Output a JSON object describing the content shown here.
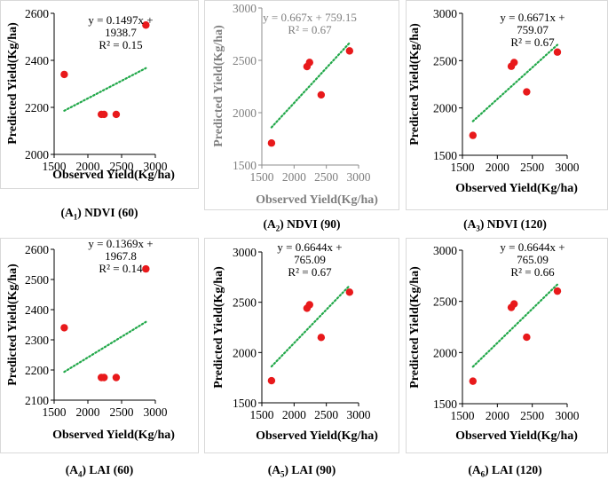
{
  "chart_data": [
    {
      "id": "A1",
      "type": "scatter",
      "caption_prefix": "(A",
      "caption_sub": "1",
      "caption_suffix": ") NDVI (60)",
      "xlabel": "Observed Yield(Kg/ha)",
      "ylabel": "Predicted Yield(Kg/ha)",
      "xlim": [
        1500,
        3000
      ],
      "ylim": [
        2000,
        2600
      ],
      "xticks": [
        "1500",
        "2000",
        "2500",
        "3000"
      ],
      "yticks": [
        "2000",
        "2200",
        "2400",
        "2600"
      ],
      "points": [
        [
          1650,
          2340
        ],
        [
          2200,
          2170
        ],
        [
          2240,
          2170
        ],
        [
          2420,
          2170
        ],
        [
          2860,
          2550
        ]
      ],
      "trendline": {
        "slope": 0.1497,
        "intercept": 1938.7,
        "x_range": [
          1650,
          2860
        ]
      },
      "equation_lines": [
        "y = 0.1497x +",
        "1938.7",
        "R² = 0.15"
      ],
      "grey_axes": false
    },
    {
      "id": "A2",
      "type": "scatter",
      "caption_prefix": "(A",
      "caption_sub": "2",
      "caption_suffix": ") NDVI (90)",
      "xlabel": "Observed Yield(Kg/ha)",
      "ylabel": "Predicted Yield(Kg/ha)",
      "xlim": [
        1500,
        3000
      ],
      "ylim": [
        1500,
        3000
      ],
      "xticks": [
        "1500",
        "2000",
        "2500",
        "3000"
      ],
      "yticks": [
        "1500",
        "2000",
        "2500",
        "3000"
      ],
      "points": [
        [
          1650,
          1710
        ],
        [
          2200,
          2440
        ],
        [
          2240,
          2480
        ],
        [
          2420,
          2170
        ],
        [
          2860,
          2590
        ]
      ],
      "trendline": {
        "slope": 0.667,
        "intercept": 759.15,
        "x_range": [
          1650,
          2860
        ]
      },
      "equation_lines": [
        "y = 0.667x + 759.15",
        "R² = 0.67"
      ],
      "grey_axes": true
    },
    {
      "id": "A3",
      "type": "scatter",
      "caption_prefix": "(A",
      "caption_sub": "3",
      "caption_suffix": ") NDVI (120)",
      "xlabel": "Observed Yield(Kg/ha)",
      "ylabel": "Predicted Yield(Kg/ha)",
      "xlim": [
        1500,
        3000
      ],
      "ylim": [
        1500,
        3000
      ],
      "xticks": [
        "1500",
        "2000",
        "2500",
        "3000"
      ],
      "yticks": [
        "1500",
        "2000",
        "2500",
        "3000"
      ],
      "points": [
        [
          1650,
          1710
        ],
        [
          2200,
          2440
        ],
        [
          2240,
          2480
        ],
        [
          2420,
          2170
        ],
        [
          2860,
          2590
        ]
      ],
      "trendline": {
        "slope": 0.6671,
        "intercept": 759.07,
        "x_range": [
          1650,
          2860
        ]
      },
      "equation_lines": [
        "y = 0.6671x +",
        "759.07",
        "R² = 0.67"
      ],
      "grey_axes": false
    },
    {
      "id": "A4",
      "type": "scatter",
      "caption_prefix": "(A",
      "caption_sub": "4",
      "caption_suffix": ") LAI (60)",
      "xlabel": "Observed Yield(Kg/ha)",
      "ylabel": "Predicted Yield(Kg/ha)",
      "xlim": [
        1500,
        3000
      ],
      "ylim": [
        2100,
        2600
      ],
      "xticks": [
        "1500",
        "2000",
        "2500",
        "3000"
      ],
      "yticks": [
        "2100",
        "2200",
        "2300",
        "2400",
        "2500",
        "2600"
      ],
      "points": [
        [
          1650,
          2340
        ],
        [
          2200,
          2175
        ],
        [
          2240,
          2175
        ],
        [
          2420,
          2175
        ],
        [
          2860,
          2535
        ]
      ],
      "trendline": {
        "slope": 0.1369,
        "intercept": 1967.8,
        "x_range": [
          1650,
          2860
        ]
      },
      "equation_lines": [
        "y = 0.1369x +",
        "1967.8",
        "R² = 0.14"
      ],
      "grey_axes": false
    },
    {
      "id": "A5",
      "type": "scatter",
      "caption_prefix": "(A",
      "caption_sub": "5",
      "caption_suffix": ") LAI (90)",
      "xlabel": "Observed Yield(Kg/ha)",
      "ylabel": "Predicted Yield(Kg/ha)",
      "xlim": [
        1500,
        3000
      ],
      "ylim": [
        1500,
        3000
      ],
      "xticks": [
        "1500",
        "2000",
        "2500",
        "3000"
      ],
      "yticks": [
        "1500",
        "2000",
        "2500",
        "3000"
      ],
      "points": [
        [
          1650,
          1720
        ],
        [
          2200,
          2440
        ],
        [
          2240,
          2475
        ],
        [
          2420,
          2150
        ],
        [
          2860,
          2600
        ]
      ],
      "trendline": {
        "slope": 0.6644,
        "intercept": 765.09,
        "x_range": [
          1650,
          2860
        ]
      },
      "equation_lines": [
        "y = 0.6644x +",
        "765.09",
        "R² = 0.67"
      ],
      "grey_axes": false
    },
    {
      "id": "A6",
      "type": "scatter",
      "caption_prefix": "(A",
      "caption_sub": "6",
      "caption_suffix": ") LAI (120)",
      "xlabel": "Observed Yield(Kg/ha)",
      "ylabel": "Predicted Yield(Kg/ha)",
      "xlim": [
        1500,
        3000
      ],
      "ylim": [
        1500,
        3000
      ],
      "xticks": [
        "1500",
        "2000",
        "2500",
        "3000"
      ],
      "yticks": [
        "1500",
        "2000",
        "2500",
        "3000"
      ],
      "points": [
        [
          1650,
          1720
        ],
        [
          2200,
          2440
        ],
        [
          2240,
          2475
        ],
        [
          2420,
          2150
        ],
        [
          2860,
          2600
        ]
      ],
      "trendline": {
        "slope": 0.6644,
        "intercept": 765.09,
        "x_range": [
          1650,
          2860
        ]
      },
      "equation_lines": [
        "y = 0.6644x +",
        "765.09",
        "R² = 0.66"
      ],
      "grey_axes": false
    }
  ],
  "colors": {
    "point": "#e8191b",
    "trendline": "#22a84a",
    "axis": "#000000",
    "axis_grey": "#8c8c8c",
    "text": "#000000",
    "text_grey": "#7f7f7f"
  }
}
